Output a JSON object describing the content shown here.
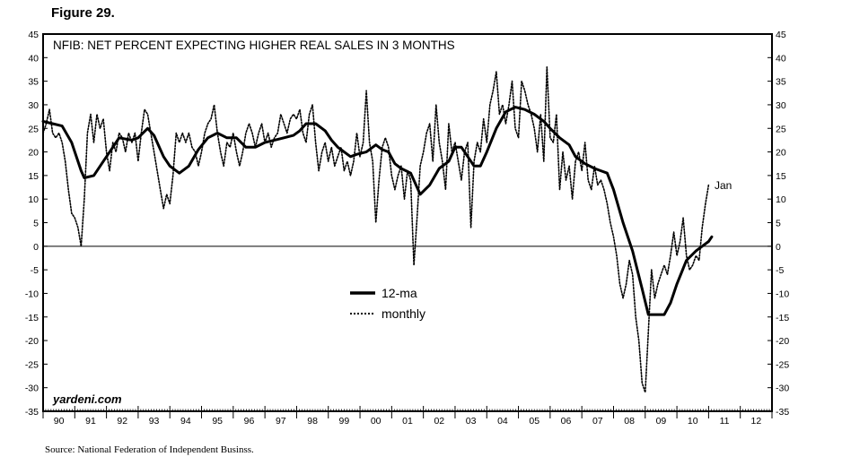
{
  "figure_label": "Figure 29.",
  "source_note": "Source: National Federation of Independent Businss.",
  "watermark": "yardeni.com",
  "chart_data": {
    "type": "line",
    "title": "NFIB: NET PERCENT EXPECTING HIGHER REAL SALES IN 3 MONTHS",
    "xlabel": "",
    "ylabel": "",
    "x_range": [
      1990,
      2013
    ],
    "ylim": [
      -35,
      45
    ],
    "y_ticks": [
      45,
      40,
      35,
      30,
      25,
      20,
      15,
      10,
      5,
      0,
      -5,
      -10,
      -15,
      -20,
      -25,
      -30,
      -35
    ],
    "y_tick_labels": [
      "45",
      "40",
      "35",
      "30",
      "25",
      "20",
      "15",
      "10",
      "5",
      "0",
      "-5",
      "-10",
      "-15",
      "-20",
      "-25",
      "-30",
      "-35"
    ],
    "x_tick_labels": [
      "90",
      "91",
      "92",
      "93",
      "94",
      "95",
      "96",
      "97",
      "98",
      "99",
      "00",
      "01",
      "02",
      "03",
      "04",
      "05",
      "06",
      "07",
      "08",
      "09",
      "10",
      "11",
      "12"
    ],
    "right_axis": true,
    "zero_line": true,
    "grid": false,
    "legend_position": "center",
    "annotation": "Jan",
    "series": [
      {
        "name": "12-ma",
        "style": "solid",
        "color": "#000000",
        "points": [
          [
            1990.0,
            26.5
          ],
          [
            1990.3,
            26
          ],
          [
            1990.6,
            25.5
          ],
          [
            1990.9,
            22
          ],
          [
            1991.2,
            16
          ],
          [
            1991.3,
            14.5
          ],
          [
            1991.6,
            15
          ],
          [
            1991.9,
            18
          ],
          [
            1992.2,
            21
          ],
          [
            1992.4,
            23
          ],
          [
            1992.8,
            22.5
          ],
          [
            1993.0,
            23
          ],
          [
            1993.3,
            25
          ],
          [
            1993.5,
            23.5
          ],
          [
            1993.8,
            19
          ],
          [
            1994.0,
            17
          ],
          [
            1994.3,
            15.5
          ],
          [
            1994.6,
            17
          ],
          [
            1994.9,
            20.5
          ],
          [
            1995.2,
            23
          ],
          [
            1995.5,
            24
          ],
          [
            1995.8,
            23
          ],
          [
            1996.1,
            23
          ],
          [
            1996.4,
            21
          ],
          [
            1996.7,
            21
          ],
          [
            1997.0,
            22
          ],
          [
            1997.3,
            22.5
          ],
          [
            1997.6,
            23
          ],
          [
            1997.9,
            23.5
          ],
          [
            1998.1,
            24.5
          ],
          [
            1998.3,
            26
          ],
          [
            1998.6,
            26
          ],
          [
            1998.9,
            24.5
          ],
          [
            1999.1,
            22.5
          ],
          [
            1999.3,
            21
          ],
          [
            1999.5,
            20
          ],
          [
            1999.7,
            19
          ],
          [
            1999.9,
            19.5
          ],
          [
            2000.2,
            20
          ],
          [
            2000.5,
            21.5
          ],
          [
            2000.7,
            20.5
          ],
          [
            2000.9,
            20
          ],
          [
            2001.1,
            17.5
          ],
          [
            2001.3,
            16.5
          ],
          [
            2001.6,
            15.5
          ],
          [
            2001.9,
            11
          ],
          [
            2002.2,
            13
          ],
          [
            2002.5,
            16.5
          ],
          [
            2002.8,
            18
          ],
          [
            2003.0,
            21
          ],
          [
            2003.2,
            21
          ],
          [
            2003.4,
            19
          ],
          [
            2003.6,
            17
          ],
          [
            2003.8,
            17
          ],
          [
            2004.0,
            20
          ],
          [
            2004.3,
            25
          ],
          [
            2004.6,
            28.5
          ],
          [
            2004.9,
            29.5
          ],
          [
            2005.2,
            29
          ],
          [
            2005.5,
            28
          ],
          [
            2005.8,
            26.5
          ],
          [
            2006.0,
            25
          ],
          [
            2006.3,
            23
          ],
          [
            2006.6,
            21.5
          ],
          [
            2006.8,
            19
          ],
          [
            2007.1,
            17.5
          ],
          [
            2007.4,
            16.5
          ],
          [
            2007.6,
            16
          ],
          [
            2007.8,
            15.5
          ],
          [
            2008.0,
            12
          ],
          [
            2008.3,
            5
          ],
          [
            2008.6,
            -1
          ],
          [
            2008.9,
            -9
          ],
          [
            2009.1,
            -14.5
          ],
          [
            2009.4,
            -14.5
          ],
          [
            2009.6,
            -14.5
          ],
          [
            2009.8,
            -12
          ],
          [
            2010.0,
            -8
          ],
          [
            2010.3,
            -3
          ],
          [
            2010.6,
            -1
          ],
          [
            2010.8,
            0
          ],
          [
            2011.0,
            1
          ],
          [
            2011.1,
            2
          ]
        ]
      },
      {
        "name": "monthly",
        "style": "dotted",
        "color": "#000000",
        "points": [
          [
            1990.0,
            24
          ],
          [
            1990.1,
            26
          ],
          [
            1990.2,
            29
          ],
          [
            1990.3,
            24
          ],
          [
            1990.4,
            23
          ],
          [
            1990.5,
            24
          ],
          [
            1990.6,
            22
          ],
          [
            1990.7,
            18
          ],
          [
            1990.8,
            12
          ],
          [
            1990.9,
            7
          ],
          [
            1991.0,
            6
          ],
          [
            1991.1,
            4
          ],
          [
            1991.2,
            0
          ],
          [
            1991.3,
            10
          ],
          [
            1991.4,
            24
          ],
          [
            1991.5,
            28
          ],
          [
            1991.6,
            22
          ],
          [
            1991.7,
            28
          ],
          [
            1991.8,
            25
          ],
          [
            1991.9,
            27
          ],
          [
            1992.0,
            20
          ],
          [
            1992.1,
            16
          ],
          [
            1992.2,
            22
          ],
          [
            1992.3,
            20
          ],
          [
            1992.4,
            24
          ],
          [
            1992.5,
            23
          ],
          [
            1992.6,
            20
          ],
          [
            1992.7,
            24
          ],
          [
            1992.8,
            22
          ],
          [
            1992.9,
            24
          ],
          [
            1993.0,
            18
          ],
          [
            1993.1,
            24
          ],
          [
            1993.2,
            29
          ],
          [
            1993.3,
            28
          ],
          [
            1993.4,
            24
          ],
          [
            1993.5,
            20
          ],
          [
            1993.6,
            16
          ],
          [
            1993.7,
            12
          ],
          [
            1993.8,
            8
          ],
          [
            1993.9,
            11
          ],
          [
            1994.0,
            9
          ],
          [
            1994.1,
            15
          ],
          [
            1994.2,
            24
          ],
          [
            1994.3,
            22
          ],
          [
            1994.4,
            24
          ],
          [
            1994.5,
            22
          ],
          [
            1994.6,
            24
          ],
          [
            1994.7,
            21
          ],
          [
            1994.8,
            20
          ],
          [
            1994.9,
            17
          ],
          [
            1995.0,
            20
          ],
          [
            1995.1,
            24
          ],
          [
            1995.2,
            26
          ],
          [
            1995.3,
            27
          ],
          [
            1995.4,
            30
          ],
          [
            1995.5,
            24
          ],
          [
            1995.6,
            20
          ],
          [
            1995.7,
            17
          ],
          [
            1995.8,
            22
          ],
          [
            1995.9,
            21
          ],
          [
            1996.0,
            24
          ],
          [
            1996.1,
            20
          ],
          [
            1996.2,
            17
          ],
          [
            1996.3,
            20
          ],
          [
            1996.4,
            24
          ],
          [
            1996.5,
            26
          ],
          [
            1996.6,
            24
          ],
          [
            1996.7,
            21
          ],
          [
            1996.8,
            24
          ],
          [
            1996.9,
            26
          ],
          [
            1997.0,
            22
          ],
          [
            1997.1,
            24
          ],
          [
            1997.2,
            21
          ],
          [
            1997.3,
            23
          ],
          [
            1997.4,
            24
          ],
          [
            1997.5,
            28
          ],
          [
            1997.6,
            26
          ],
          [
            1997.7,
            24
          ],
          [
            1997.8,
            27
          ],
          [
            1997.9,
            28
          ],
          [
            1998.0,
            27
          ],
          [
            1998.1,
            29
          ],
          [
            1998.2,
            24
          ],
          [
            1998.3,
            22
          ],
          [
            1998.4,
            28
          ],
          [
            1998.5,
            30
          ],
          [
            1998.6,
            22
          ],
          [
            1998.7,
            16
          ],
          [
            1998.8,
            20
          ],
          [
            1998.9,
            22
          ],
          [
            1999.0,
            18
          ],
          [
            1999.1,
            21
          ],
          [
            1999.2,
            17
          ],
          [
            1999.3,
            19
          ],
          [
            1999.4,
            21
          ],
          [
            1999.5,
            16
          ],
          [
            1999.6,
            18
          ],
          [
            1999.7,
            15
          ],
          [
            1999.8,
            18
          ],
          [
            1999.9,
            24
          ],
          [
            2000.0,
            19
          ],
          [
            2000.1,
            22
          ],
          [
            2000.2,
            33
          ],
          [
            2000.3,
            22
          ],
          [
            2000.4,
            18
          ],
          [
            2000.5,
            5
          ],
          [
            2000.6,
            14
          ],
          [
            2000.7,
            21
          ],
          [
            2000.8,
            23
          ],
          [
            2000.9,
            21
          ],
          [
            2001.0,
            15
          ],
          [
            2001.1,
            12
          ],
          [
            2001.2,
            15
          ],
          [
            2001.3,
            17
          ],
          [
            2001.4,
            10
          ],
          [
            2001.5,
            16
          ],
          [
            2001.6,
            14
          ],
          [
            2001.7,
            -4
          ],
          [
            2001.8,
            6
          ],
          [
            2001.9,
            17
          ],
          [
            2002.0,
            20
          ],
          [
            2002.1,
            24
          ],
          [
            2002.2,
            26
          ],
          [
            2002.3,
            18
          ],
          [
            2002.4,
            30
          ],
          [
            2002.5,
            22
          ],
          [
            2002.6,
            18
          ],
          [
            2002.7,
            12
          ],
          [
            2002.8,
            26
          ],
          [
            2002.9,
            20
          ],
          [
            2003.0,
            22
          ],
          [
            2003.1,
            18
          ],
          [
            2003.2,
            14
          ],
          [
            2003.3,
            20
          ],
          [
            2003.4,
            22
          ],
          [
            2003.5,
            4
          ],
          [
            2003.6,
            18
          ],
          [
            2003.7,
            22
          ],
          [
            2003.8,
            20
          ],
          [
            2003.9,
            27
          ],
          [
            2004.0,
            22
          ],
          [
            2004.1,
            30
          ],
          [
            2004.2,
            33
          ],
          [
            2004.3,
            37
          ],
          [
            2004.4,
            28
          ],
          [
            2004.5,
            30
          ],
          [
            2004.6,
            26
          ],
          [
            2004.7,
            30
          ],
          [
            2004.8,
            35
          ],
          [
            2004.9,
            25
          ],
          [
            2005.0,
            23
          ],
          [
            2005.1,
            35
          ],
          [
            2005.2,
            33
          ],
          [
            2005.3,
            30
          ],
          [
            2005.4,
            28
          ],
          [
            2005.5,
            25
          ],
          [
            2005.6,
            20
          ],
          [
            2005.7,
            28
          ],
          [
            2005.8,
            18
          ],
          [
            2005.9,
            38
          ],
          [
            2006.0,
            23
          ],
          [
            2006.1,
            22
          ],
          [
            2006.2,
            28
          ],
          [
            2006.3,
            12
          ],
          [
            2006.4,
            20
          ],
          [
            2006.5,
            14
          ],
          [
            2006.6,
            17
          ],
          [
            2006.7,
            10
          ],
          [
            2006.8,
            18
          ],
          [
            2006.9,
            20
          ],
          [
            2007.0,
            16
          ],
          [
            2007.1,
            22
          ],
          [
            2007.2,
            14
          ],
          [
            2007.3,
            12
          ],
          [
            2007.4,
            17
          ],
          [
            2007.5,
            13
          ],
          [
            2007.6,
            14
          ],
          [
            2007.7,
            12
          ],
          [
            2007.8,
            9
          ],
          [
            2007.9,
            5
          ],
          [
            2008.0,
            2
          ],
          [
            2008.1,
            -2
          ],
          [
            2008.2,
            -8
          ],
          [
            2008.3,
            -11
          ],
          [
            2008.4,
            -8
          ],
          [
            2008.5,
            -3
          ],
          [
            2008.6,
            -6
          ],
          [
            2008.7,
            -15
          ],
          [
            2008.8,
            -20
          ],
          [
            2008.9,
            -29
          ],
          [
            2009.0,
            -31
          ],
          [
            2009.1,
            -18
          ],
          [
            2009.2,
            -5
          ],
          [
            2009.3,
            -11
          ],
          [
            2009.4,
            -8
          ],
          [
            2009.5,
            -6
          ],
          [
            2009.6,
            -4
          ],
          [
            2009.7,
            -6
          ],
          [
            2009.8,
            -2
          ],
          [
            2009.9,
            3
          ],
          [
            2010.0,
            -2
          ],
          [
            2010.1,
            1
          ],
          [
            2010.2,
            6
          ],
          [
            2010.3,
            -2
          ],
          [
            2010.4,
            -5
          ],
          [
            2010.5,
            -4
          ],
          [
            2010.6,
            -2
          ],
          [
            2010.7,
            -3
          ],
          [
            2010.8,
            4
          ],
          [
            2010.9,
            9
          ],
          [
            2011.0,
            13
          ]
        ]
      }
    ]
  }
}
